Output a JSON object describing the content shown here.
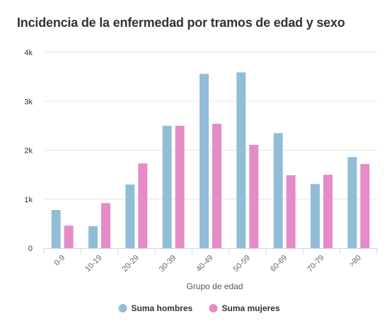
{
  "chart_data": {
    "type": "bar",
    "title": "Incidencia de la enfermedad por tramos de edad y sexo",
    "xlabel": "Grupo de edad",
    "ylabel": "",
    "categories": [
      "0-9",
      "10-19",
      "20-29",
      "30-39",
      "40-49",
      "50-59",
      "60-69",
      "70-79",
      ">80"
    ],
    "series": [
      {
        "name": "Suma hombres",
        "color": "#92bdd8",
        "values": [
          780,
          450,
          1300,
          2500,
          3560,
          3590,
          2350,
          1310,
          1860
        ]
      },
      {
        "name": "Suma mujeres",
        "color": "#e58bc8",
        "values": [
          460,
          920,
          1730,
          2500,
          2540,
          2110,
          1490,
          1500,
          1720
        ]
      }
    ],
    "ylim": [
      0,
      4000
    ],
    "yticks": [
      {
        "value": 0,
        "label": "0"
      },
      {
        "value": 1000,
        "label": "1k"
      },
      {
        "value": 2000,
        "label": "2k"
      },
      {
        "value": 3000,
        "label": "3k"
      },
      {
        "value": 4000,
        "label": "4k"
      }
    ],
    "grid": true,
    "legend_position": "bottom-center"
  }
}
